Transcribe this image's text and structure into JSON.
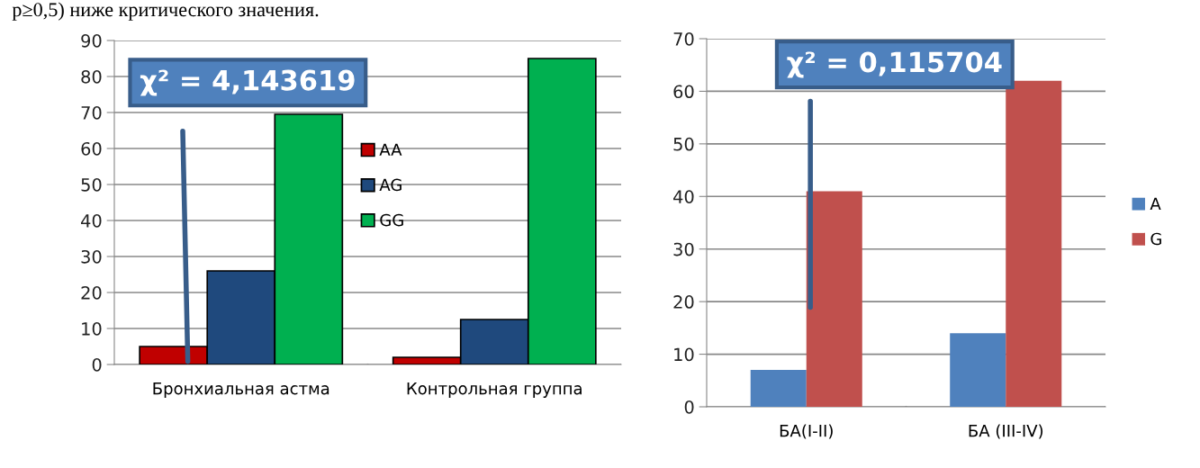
{
  "chart_data": [
    {
      "type": "bar",
      "categories": [
        "Бронхиальная астма",
        "Контрольная группа"
      ],
      "series": [
        {
          "name": "AA",
          "color": "#c00000",
          "values": [
            5,
            2
          ]
        },
        {
          "name": "AG",
          "color": "#1f497d",
          "values": [
            26,
            12.5
          ]
        },
        {
          "name": "GG",
          "color": "#00b050",
          "values": [
            69.5,
            85
          ]
        }
      ],
      "ylim": [
        0,
        90
      ],
      "yticks": [
        0,
        10,
        20,
        30,
        40,
        50,
        60,
        70,
        80,
        90
      ],
      "grid": "y",
      "legend": "center",
      "annotations": [
        "χ² = 4,143619",
        "p≥0,5) ниже критического значения."
      ]
    },
    {
      "type": "bar",
      "categories": [
        "БА(I-II)",
        "БА (III-IV)"
      ],
      "series": [
        {
          "name": "A",
          "color": "#4f81bd",
          "values": [
            7,
            14
          ]
        },
        {
          "name": "G",
          "color": "#c0504d",
          "values": [
            41,
            62
          ]
        }
      ],
      "ylim": [
        0,
        70
      ],
      "yticks": [
        0,
        10,
        20,
        30,
        40,
        50,
        60,
        70
      ],
      "grid": "y",
      "legend": "right",
      "annotations": [
        "χ² = 0,115704"
      ]
    }
  ]
}
